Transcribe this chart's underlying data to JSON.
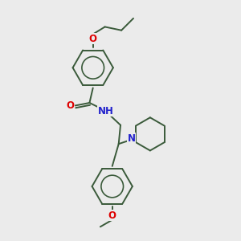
{
  "bg_color": "#ebebeb",
  "bond_color": "#3a5a3a",
  "O_color": "#dd0000",
  "N_color": "#2222cc",
  "font_size": 8.5,
  "lw": 1.4,
  "xlim": [
    0,
    10
  ],
  "ylim": [
    0,
    10.5
  ]
}
